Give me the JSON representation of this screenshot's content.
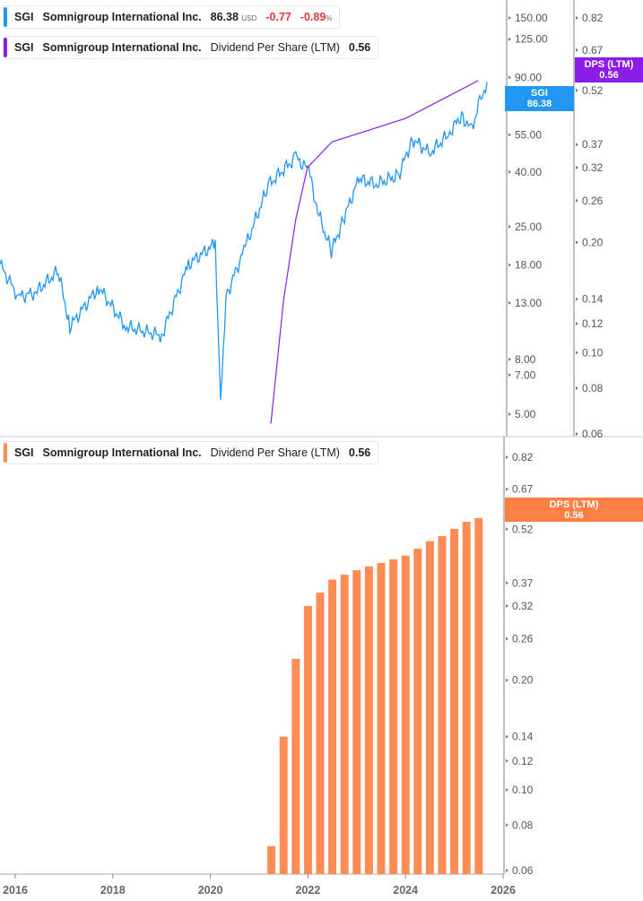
{
  "legend_price": {
    "ticker": "SGI",
    "name": "Somnigroup International Inc.",
    "price": "86.38",
    "currency": "USD",
    "change": "-0.77",
    "change_pct": "-0.89",
    "pct_sign": "%"
  },
  "legend_dps_top": {
    "ticker": "SGI",
    "name": "Somnigroup International Inc.",
    "metric": "Dividend Per Share (LTM)",
    "value": "0.56"
  },
  "legend_dps_bottom": {
    "ticker": "SGI",
    "name": "Somnigroup International Inc.",
    "metric": "Dividend Per Share (LTM)",
    "value": "0.56"
  },
  "badges": {
    "price_label": "SGI",
    "price_value": "86.38",
    "dps_label": "DPS (LTM)",
    "dps_value": "0.56",
    "dps2_label": "DPS (LTM)",
    "dps2_value": "0.56"
  },
  "colors": {
    "price": "#2196f3",
    "dps_line": "#8a1ee8",
    "bars": "#ff8c55",
    "bar_badge": "#ff7f45"
  },
  "chart_data": [
    {
      "type": "line",
      "title": "SGI price",
      "scale": "log",
      "xlim": [
        2015.69,
        2026.1
      ],
      "ylim": [
        5,
        150
      ],
      "y_ticks": [
        150,
        125,
        90,
        55,
        40,
        25,
        18,
        13,
        8,
        7,
        5
      ],
      "y_tick_labels": [
        "150.00",
        "125.00",
        "90.00",
        "55.00",
        "40.00",
        "25.00",
        "18.00",
        "13.00",
        "8.00",
        "7.00",
        "5.00"
      ],
      "x": [
        2015.69,
        2016.06,
        2016.42,
        2016.88,
        2017.12,
        2017.71,
        2018.26,
        2019.0,
        2019.55,
        2020.1,
        2020.21,
        2020.32,
        2020.74,
        2021.2,
        2021.75,
        2022.02,
        2022.2,
        2022.48,
        2022.75,
        2023.04,
        2023.4,
        2023.86,
        2024.14,
        2024.5,
        2024.88,
        2025.15,
        2025.34,
        2025.52,
        2025.67
      ],
      "y": [
        18.1,
        13.7,
        14.2,
        17.1,
        10.6,
        14.9,
        10.6,
        9.8,
        18.1,
        21.6,
        5.6,
        13.7,
        21.6,
        36.0,
        45.3,
        40.5,
        28.5,
        20.2,
        27.3,
        37.6,
        36.0,
        38.9,
        53.0,
        47.0,
        55.1,
        65.3,
        57.0,
        72.0,
        86.4
      ]
    },
    {
      "type": "line",
      "title": "Dividend Per Share (LTM)",
      "scale": "log",
      "ylim": [
        0.06,
        0.82
      ],
      "y_ticks": [
        0.82,
        0.67,
        0.52,
        0.37,
        0.32,
        0.26,
        0.2,
        0.14,
        0.12,
        0.1,
        0.08,
        0.06
      ],
      "y_tick_labels": [
        "0.82",
        "0.67",
        "0.52",
        "0.37",
        "0.32",
        "0.26",
        "0.20",
        "0.14",
        "0.12",
        "0.10",
        "0.08",
        "0.06"
      ],
      "x": [
        2021.24,
        2021.5,
        2021.75,
        2021.99,
        2022.49,
        2024.0,
        2025.49
      ],
      "y": [
        0.064,
        0.139,
        0.231,
        0.32,
        0.376,
        0.436,
        0.553
      ]
    },
    {
      "type": "bar",
      "title": "Dividend Per Share (LTM)",
      "scale": "log",
      "ylim": [
        0.06,
        0.82
      ],
      "y_ticks": [
        0.82,
        0.67,
        0.52,
        0.37,
        0.32,
        0.26,
        0.2,
        0.14,
        0.12,
        0.1,
        0.08,
        0.06
      ],
      "y_tick_labels": [
        "0.82",
        "0.67",
        "0.52",
        "0.37",
        "0.32",
        "0.26",
        "0.20",
        "0.14",
        "0.12",
        "0.10",
        "0.08",
        "0.06"
      ],
      "x": [
        2021.25,
        2021.5,
        2021.75,
        2022.0,
        2022.25,
        2022.5,
        2022.75,
        2023.0,
        2023.25,
        2023.5,
        2023.75,
        2024.0,
        2024.25,
        2024.5,
        2024.75,
        2025.0,
        2025.25,
        2025.5
      ],
      "values": [
        0.07,
        0.14,
        0.229,
        0.32,
        0.348,
        0.378,
        0.39,
        0.401,
        0.411,
        0.42,
        0.43,
        0.44,
        0.46,
        0.482,
        0.498,
        0.521,
        0.545,
        0.558
      ],
      "x_ticks": [
        2016,
        2018,
        2020,
        2022,
        2024,
        2026
      ],
      "x_tick_labels": [
        "2016",
        "2018",
        "2020",
        "2022",
        "2024",
        "2026"
      ]
    }
  ]
}
